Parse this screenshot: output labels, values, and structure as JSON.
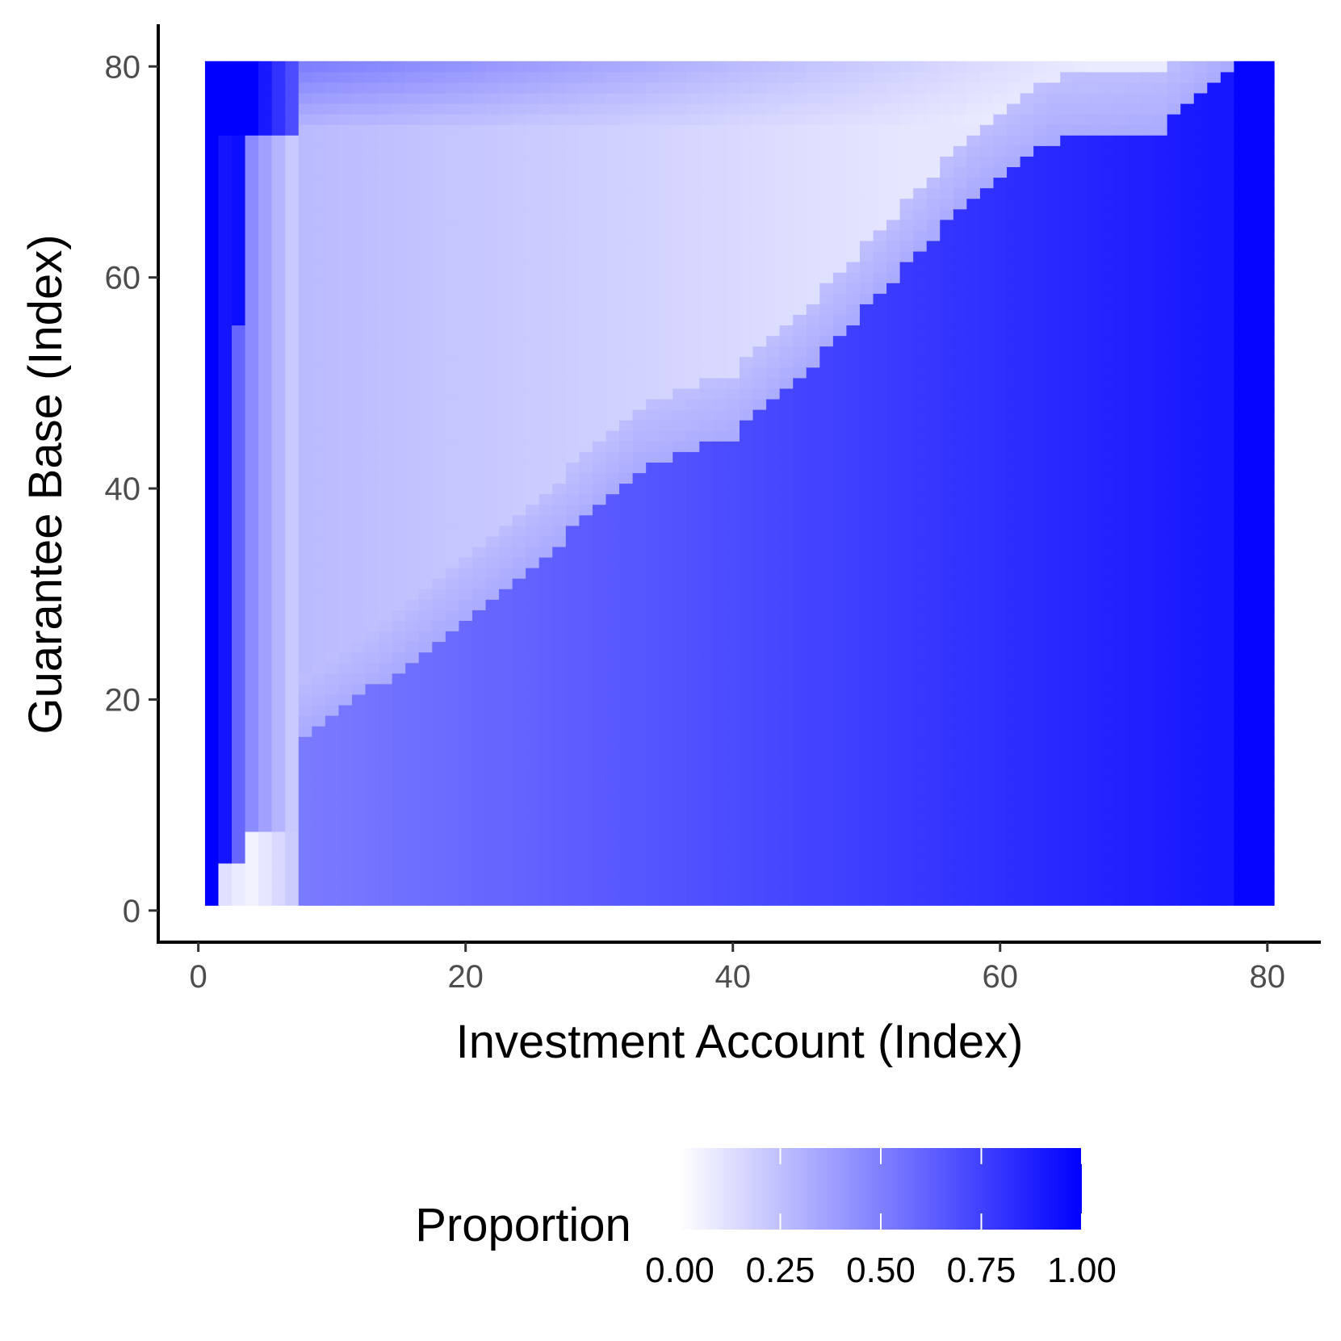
{
  "chart_data": {
    "type": "heatmap",
    "title": "",
    "xlabel": "Investment Account (Index)",
    "ylabel": "Guarantee Base (Index)",
    "x_range": [
      1,
      80
    ],
    "y_range": [
      1,
      80
    ],
    "xlim": [
      -3,
      84
    ],
    "ylim": [
      -3,
      84
    ],
    "x_ticks": [
      0,
      20,
      40,
      60,
      80
    ],
    "y_ticks": [
      0,
      20,
      40,
      60,
      80
    ],
    "color_scale": {
      "low": "#ffffff",
      "high": "#0000ff",
      "min": 0,
      "max": 1
    },
    "grid": false,
    "legend": {
      "title": "Proportion",
      "position": "bottom",
      "ticks": [
        0.0,
        0.25,
        0.5,
        0.75,
        1.0
      ],
      "tick_labels": [
        "0.00",
        "0.25",
        "0.50",
        "0.75",
        "1.00"
      ]
    },
    "description": "Proportion values on an 80 by 80 grid. Boundary curve between the light region and the dark region (approximate, y = guarantee base index where the lower dark region begins its upper edge) follows points: (8,17), (14,22), (20,28), (27,35), (33,42), (40,45), (46,52), (52,60), (58,68), (64,73), (72,74), (77,80)."
  }
}
